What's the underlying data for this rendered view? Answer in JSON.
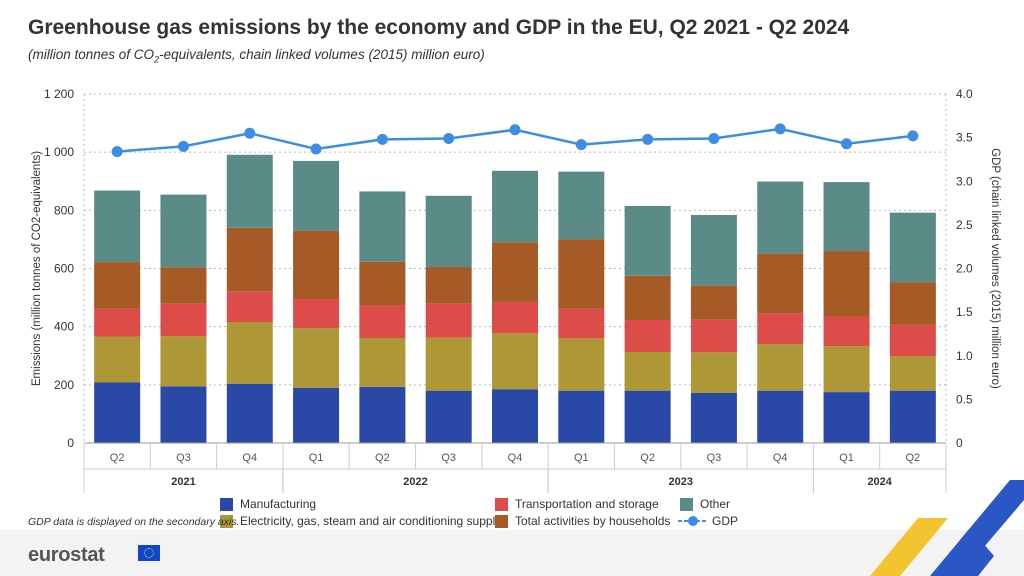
{
  "title": "Greenhouse gas emissions by the economy and GDP in the EU, Q2 2021 - Q2 2024",
  "subtitle": "(million tonnes of CO2-equivalents, chain linked volumes (2015) million euro)",
  "note": "GDP data is displayed on the secondary axis.",
  "brand": "eurostat",
  "colors": {
    "manufacturing": "#2a48a6",
    "electricity": "#ae9737",
    "transport": "#dc4c48",
    "households": "#a65a26",
    "other": "#5a8b86",
    "gdp": "#3d8de2"
  },
  "chart_data": {
    "type": "bar",
    "stacked": true,
    "title": "Greenhouse gas emissions by the economy and GDP in the EU, Q2 2021 - Q2 2024",
    "categories": [
      "Q2",
      "Q3",
      "Q4",
      "Q1",
      "Q2",
      "Q3",
      "Q4",
      "Q1",
      "Q2",
      "Q3",
      "Q4",
      "Q1",
      "Q2"
    ],
    "year_groups": [
      {
        "label": "2021",
        "start": 0,
        "end": 2
      },
      {
        "label": "2022",
        "start": 3,
        "end": 6
      },
      {
        "label": "2023",
        "start": 7,
        "end": 10
      },
      {
        "label": "2024",
        "start": 11,
        "end": 12
      }
    ],
    "ylabel": "Emissions (million tonnes of CO2-equivalents)",
    "y2label": "GDP (chain linked volumes (2015) million euro)",
    "ylim": [
      0,
      1200
    ],
    "y2lim": [
      0,
      4.0
    ],
    "yticks": [
      0,
      200,
      400,
      600,
      800,
      1000,
      1200
    ],
    "ytick_labels": [
      "0",
      "200",
      "400",
      "600",
      "800",
      "1 000",
      "1 200"
    ],
    "y2ticks": [
      0,
      0.5,
      1.0,
      1.5,
      2.0,
      2.5,
      3.0,
      3.5,
      4.0
    ],
    "y2tick_labels": [
      "0",
      "0.5",
      "1.0",
      "1.5",
      "2.0",
      "2.5",
      "3.0",
      "3.5",
      "4.0"
    ],
    "grid": true,
    "legend_position": "bottom",
    "series": [
      {
        "name": "Manufacturing",
        "key": "manufacturing",
        "values": [
          208,
          195,
          203,
          190,
          193,
          180,
          185,
          180,
          180,
          172,
          180,
          175,
          180
        ]
      },
      {
        "name": "Electricity, gas, steam and air conditioning supply",
        "key": "electricity",
        "values": [
          158,
          172,
          213,
          205,
          168,
          182,
          192,
          180,
          133,
          140,
          160,
          158,
          118
        ]
      },
      {
        "name": "Transportation and storage",
        "key": "transport",
        "values": [
          96,
          112,
          106,
          100,
          112,
          117,
          108,
          102,
          110,
          112,
          106,
          102,
          108
        ]
      },
      {
        "name": "Total activities by households",
        "key": "households",
        "values": [
          160,
          125,
          218,
          235,
          150,
          126,
          205,
          238,
          152,
          117,
          205,
          225,
          146
        ]
      },
      {
        "name": "Other",
        "key": "other",
        "values": [
          246,
          250,
          251,
          240,
          242,
          245,
          246,
          233,
          240,
          243,
          248,
          237,
          240
        ]
      }
    ],
    "line_series": {
      "name": "GDP",
      "key": "gdp",
      "axis": "secondary",
      "values": [
        3.34,
        3.4,
        3.55,
        3.37,
        3.48,
        3.49,
        3.59,
        3.42,
        3.48,
        3.49,
        3.6,
        3.43,
        3.52
      ]
    }
  }
}
